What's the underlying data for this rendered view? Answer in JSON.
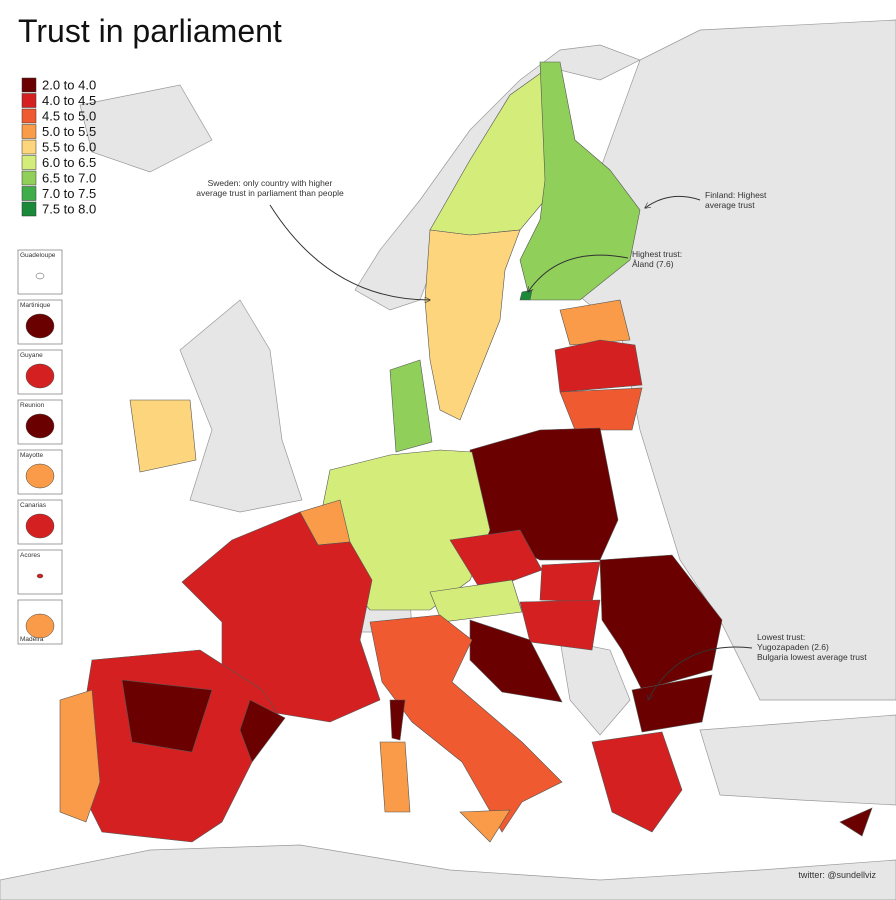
{
  "title": "Trust in parliament",
  "legend": {
    "items": [
      {
        "label": "2.0 to 4.0",
        "color": "#6b0000"
      },
      {
        "label": "4.0 to 4.5",
        "color": "#d42020"
      },
      {
        "label": "4.5 to 5.0",
        "color": "#f05a30"
      },
      {
        "label": "5.0 to 5.5",
        "color": "#f99b48"
      },
      {
        "label": "5.5 to 6.0",
        "color": "#fdd57d"
      },
      {
        "label": "6.0 to 6.5",
        "color": "#d4ec7a"
      },
      {
        "label": "6.5 to 7.0",
        "color": "#8fcf5a"
      },
      {
        "label": "7.0 to 7.5",
        "color": "#3fae4a"
      },
      {
        "label": "7.5 to 8.0",
        "color": "#1a8a3a"
      }
    ]
  },
  "annotations": [
    {
      "lines": [
        "Sweden: only country with higher",
        "average trust in parliament than people"
      ]
    },
    {
      "lines": [
        "Finland: Highest",
        "average trust"
      ]
    },
    {
      "lines": [
        "Highest trust:",
        "Åland (7.6)"
      ]
    },
    {
      "lines": [
        "Lowest trust:",
        "Yugozapaden (2.6)",
        "Bulgaria lowest average trust"
      ]
    }
  ],
  "insets": [
    {
      "label": "Guadeloupe"
    },
    {
      "label": "Martinique"
    },
    {
      "label": "Guyane"
    },
    {
      "label": "Reunion"
    },
    {
      "label": "Mayotte"
    },
    {
      "label": "Canarias"
    },
    {
      "label": "Acores"
    },
    {
      "label": "Madeira"
    }
  ],
  "credit": "twitter: @sundellviz"
}
